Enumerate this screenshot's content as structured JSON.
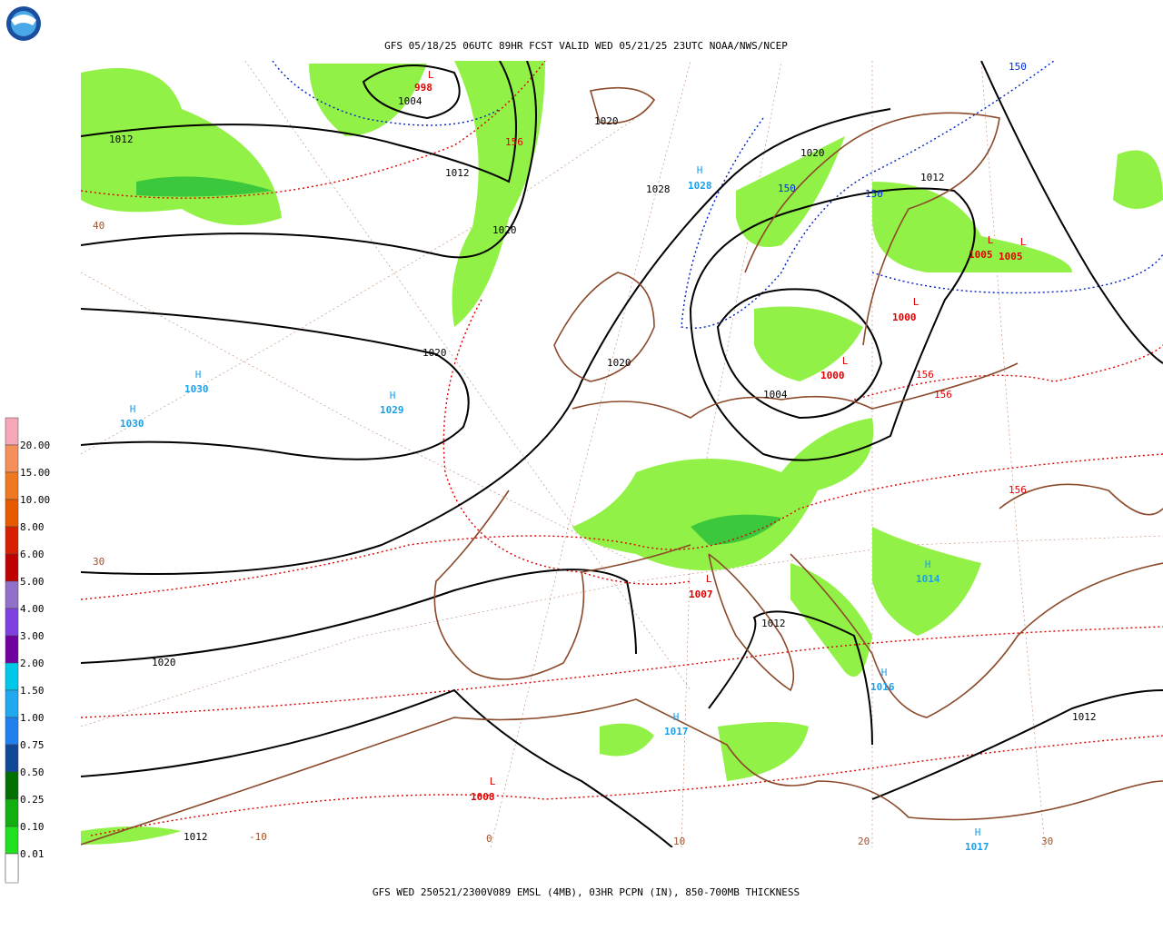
{
  "header": {
    "title": "GFS 05/18/25 06UTC 89HR FCST VALID WED 05/21/25 23UTC NOAA/NWS/NCEP"
  },
  "footer": {
    "caption": "GFS WED 250521/2300V089 EMSL (4MB), 03HR PCPN (IN), 850-700MB THICKNESS"
  },
  "legend": {
    "labels": [
      "20.00",
      "15.00",
      "10.00",
      "8.00",
      "6.00",
      "5.00",
      "4.00",
      "3.00",
      "2.00",
      "1.50",
      "1.00",
      "0.75",
      "0.50",
      "0.25",
      "0.10",
      "0.01"
    ]
  },
  "map": {
    "highs": [
      {
        "symbol": "H",
        "pressure": 1028
      },
      {
        "symbol": "H",
        "pressure": 1030
      },
      {
        "symbol": "H",
        "pressure": 1030
      },
      {
        "symbol": "H",
        "pressure": 1029
      },
      {
        "symbol": "H",
        "pressure": 1014
      },
      {
        "symbol": "H",
        "pressure": 1016
      },
      {
        "symbol": "H",
        "pressure": 1017
      },
      {
        "symbol": "H",
        "pressure": 1017
      }
    ],
    "lows": [
      {
        "symbol": "L",
        "pressure": 998
      },
      {
        "symbol": "L",
        "pressure": 1005
      },
      {
        "symbol": "L",
        "pressure": 1005
      },
      {
        "symbol": "L",
        "pressure": 1000
      },
      {
        "symbol": "L",
        "pressure": 1000
      },
      {
        "symbol": "L",
        "pressure": 1007
      },
      {
        "symbol": "L",
        "pressure": 1008
      }
    ],
    "isobar_labels": [
      1012,
      1004,
      1020,
      1012,
      1028,
      1020,
      1020,
      1012,
      1020,
      1020,
      1004,
      1012,
      1020,
      1012,
      1012
    ],
    "thickness_labels_red": [
      156,
      156,
      156,
      156
    ],
    "thickness_labels_blue": [
      150,
      150,
      150
    ],
    "latlon_labels": [
      40,
      30,
      -10,
      0,
      10,
      20,
      30
    ]
  }
}
